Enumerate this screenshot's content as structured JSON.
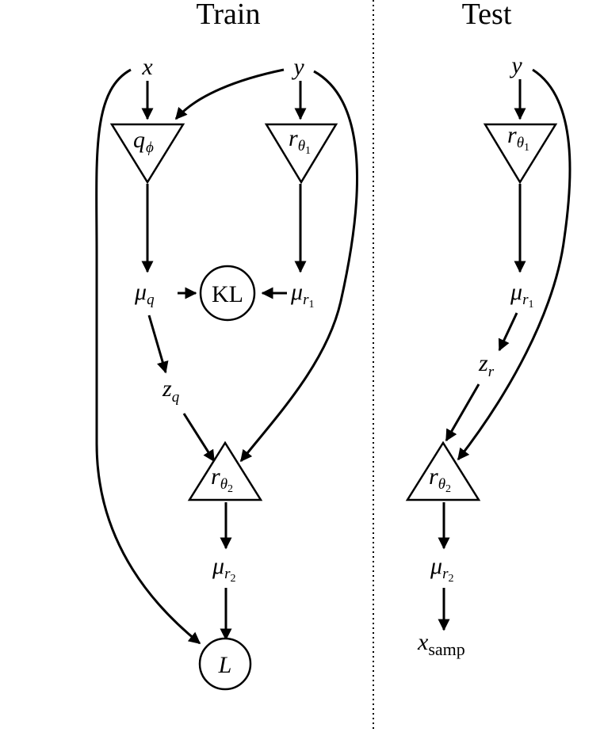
{
  "panels": {
    "train_title": "Train",
    "test_title": "Test"
  },
  "train": {
    "x": "x",
    "y": "y",
    "q_phi": {
      "base": "q",
      "sub": "ϕ"
    },
    "r_theta1": {
      "base": "r",
      "sub": "θ",
      "subsub": "1"
    },
    "mu_q": {
      "base": "μ",
      "sub": "q"
    },
    "kl": "KL",
    "mu_r1": {
      "base": "μ",
      "sub": "r",
      "subsub": "1"
    },
    "z_q": {
      "base": "z",
      "sub": "q"
    },
    "r_theta2": {
      "base": "r",
      "sub": "θ",
      "subsub": "2"
    },
    "mu_r2": {
      "base": "μ",
      "sub": "r",
      "subsub": "2"
    },
    "loss": "L"
  },
  "test": {
    "y": "y",
    "r_theta1": {
      "base": "r",
      "sub": "θ",
      "subsub": "1"
    },
    "mu_r1": {
      "base": "μ",
      "sub": "r",
      "subsub": "1"
    },
    "z_r": {
      "base": "z",
      "sub": "r"
    },
    "r_theta2": {
      "base": "r",
      "sub": "θ",
      "subsub": "2"
    },
    "mu_r2": {
      "base": "μ",
      "sub": "r",
      "subsub": "2"
    },
    "x_samp": {
      "base": "x",
      "sub": "samp"
    }
  }
}
